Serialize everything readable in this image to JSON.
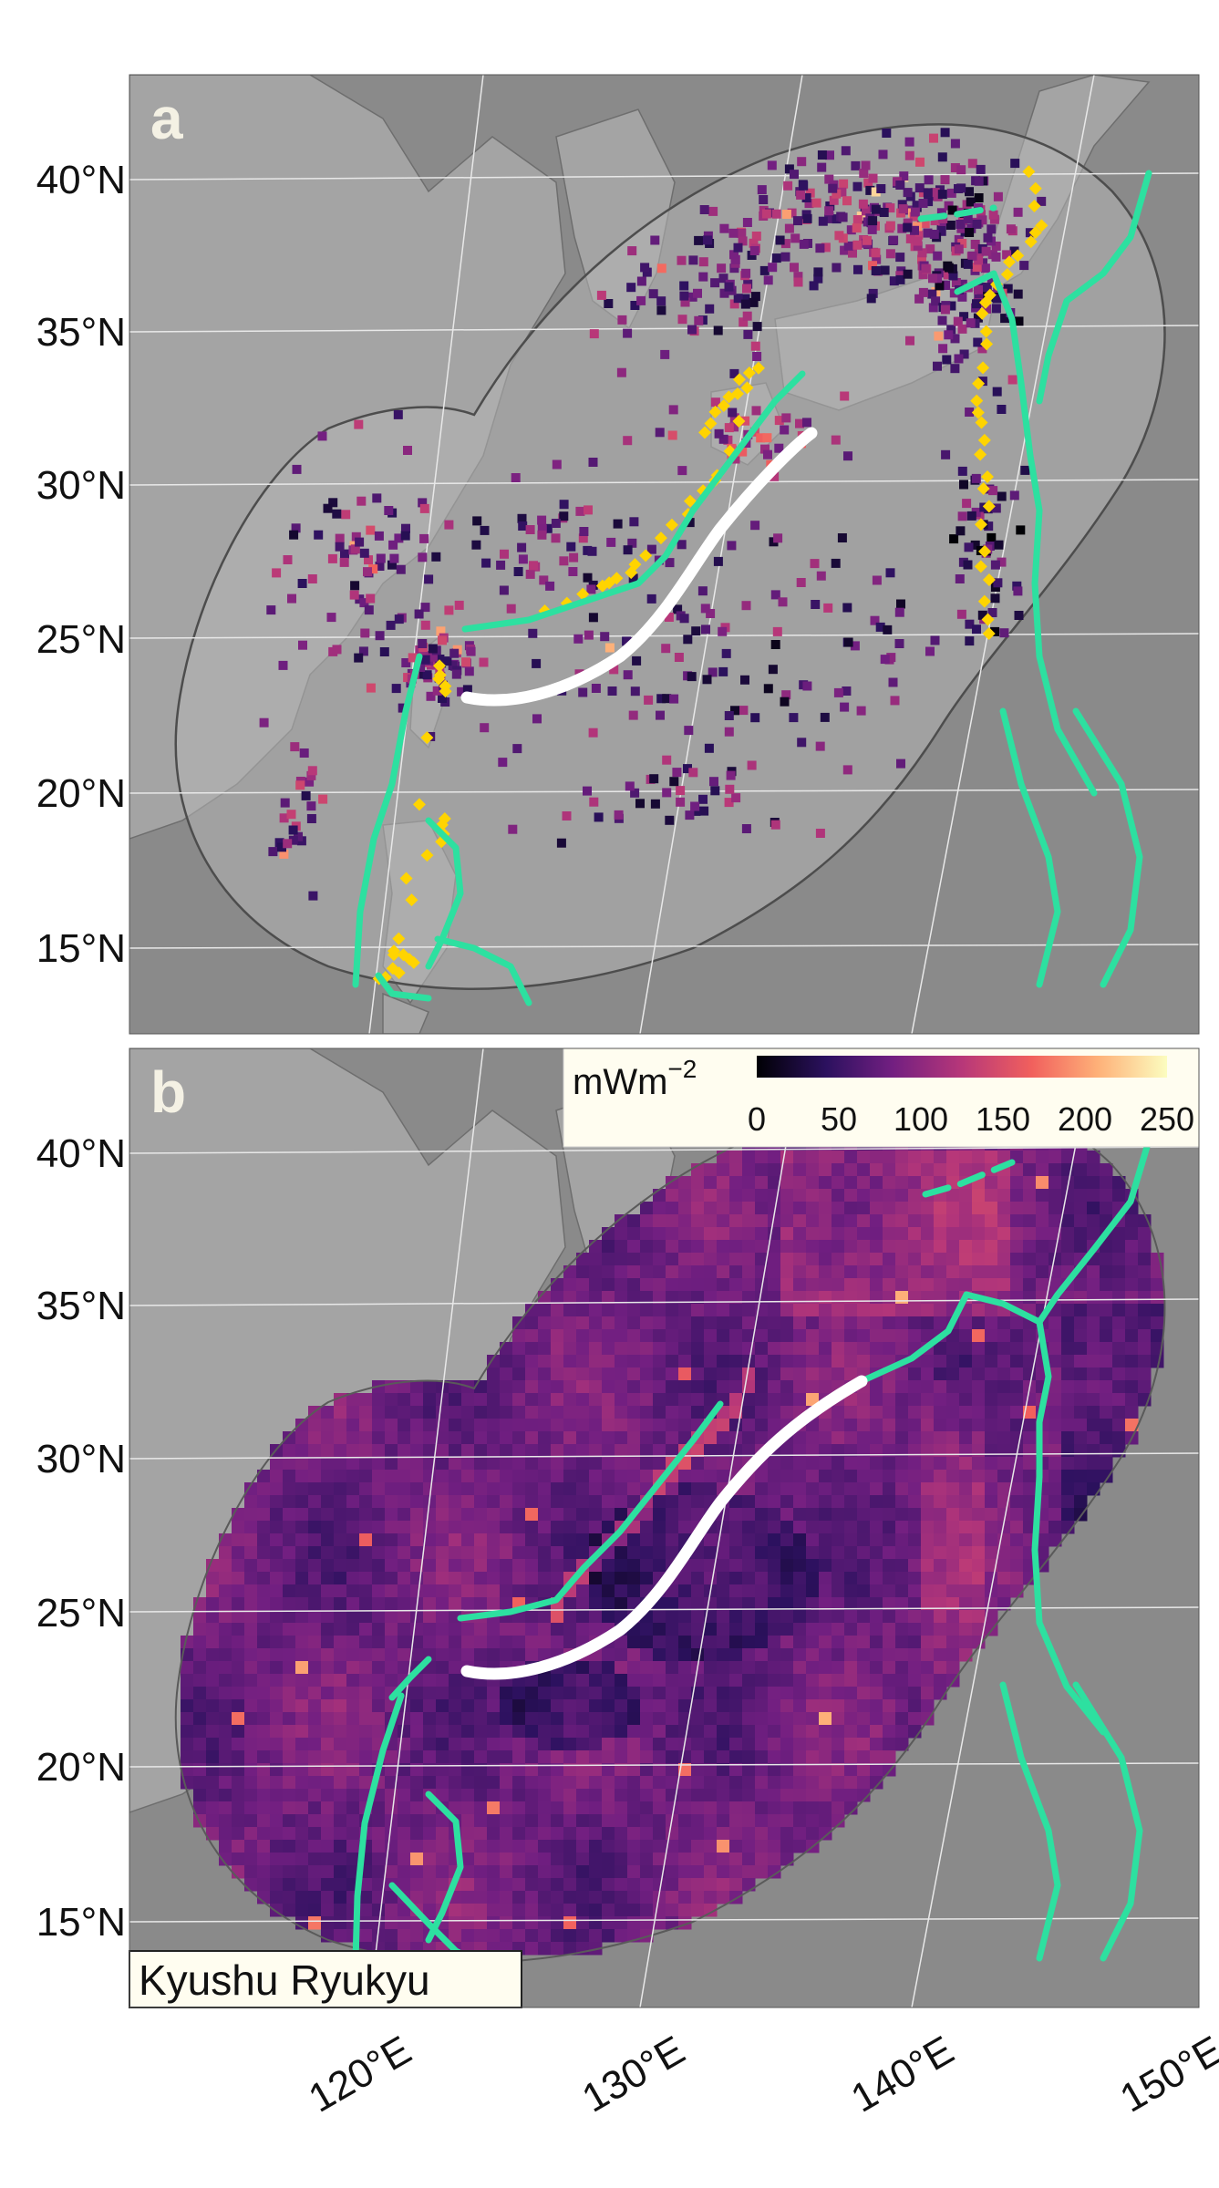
{
  "panels": [
    {
      "letter": "a",
      "description_kind": "heat-flow-points"
    },
    {
      "letter": "b",
      "description_kind": "gridded-heat-flow"
    }
  ],
  "axes": {
    "lat_labels": [
      "40°N",
      "35°N",
      "30°N",
      "25°N",
      "20°N",
      "15°N"
    ],
    "lon_labels": [
      "120°E",
      "130°E",
      "140°E",
      "150°E"
    ]
  },
  "colorbar": {
    "unit_main": "mWm",
    "unit_exp": "−2",
    "ticks": [
      "0",
      "50",
      "100",
      "150",
      "200",
      "250"
    ],
    "range": [
      0,
      250
    ],
    "palette": [
      "#000004",
      "#2c115f",
      "#721f81",
      "#b73779",
      "#f1605d",
      "#feb078",
      "#fcfdbf"
    ]
  },
  "region_label": "Kyushu Ryukyu",
  "colors": {
    "ocean": "#8a8a8a",
    "land": "#a6a6a6",
    "buffer": "#b0b0b0",
    "trench": "#2de0a0",
    "segment": "#ffffff",
    "highlight": "#ffd400",
    "label_bg": "#fffdf0"
  }
}
